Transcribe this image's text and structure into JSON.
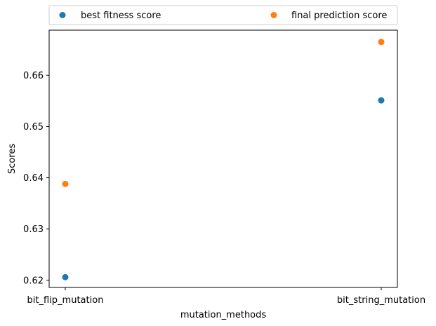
{
  "chart_data": {
    "type": "scatter",
    "categories": [
      "bit_flip_mutation",
      "bit_string_mutation"
    ],
    "series": [
      {
        "name": "best fitness score",
        "color": "#1f77b4",
        "values": [
          0.6206,
          0.6551
        ]
      },
      {
        "name": "final prediction score",
        "color": "#ff7f0e",
        "values": [
          0.6388,
          0.6665
        ]
      }
    ],
    "xlabel": "mutation_methods",
    "ylabel": "Scores",
    "ylim": [
      0.6186,
      0.6688
    ],
    "yticks": [
      0.62,
      0.63,
      0.64,
      0.65,
      0.66
    ],
    "ytick_labels": [
      "0.62",
      "0.63",
      "0.64",
      "0.65",
      "0.66"
    ],
    "grid": false,
    "legend": {
      "placement": "top-center",
      "columns": 2
    }
  }
}
